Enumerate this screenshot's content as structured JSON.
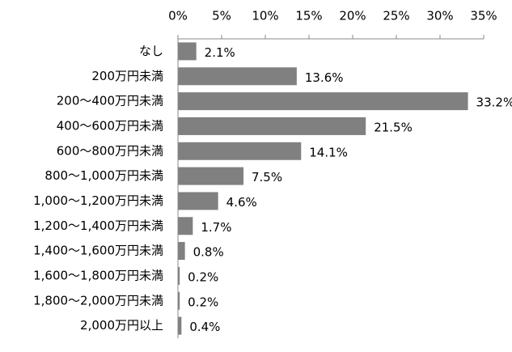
{
  "chart_data": {
    "type": "bar",
    "orientation": "horizontal",
    "categories": [
      "なし",
      "200万円未満",
      "200〜400万円未満",
      "400〜600万円未満",
      "600〜800万円未満",
      "800〜1,000万円未満",
      "1,000〜1,200万円未満",
      "1,200〜1,400万円未満",
      "1,400〜1,600万円未満",
      "1,600〜1,800万円未満",
      "1,800〜2,000万円未満",
      "2,000万円以上"
    ],
    "values": [
      2.1,
      13.6,
      33.2,
      21.5,
      14.1,
      7.5,
      4.6,
      1.7,
      0.8,
      0.2,
      0.2,
      0.4
    ],
    "value_labels": [
      "2.1%",
      "13.6%",
      "33.2%",
      "21.5%",
      "14.1%",
      "7.5%",
      "4.6%",
      "1.7%",
      "0.8%",
      "0.2%",
      "0.2%",
      "0.4%"
    ],
    "color": "#808080",
    "xlim": [
      0,
      35
    ],
    "xticks": [
      {
        "value": 0,
        "label": "0%"
      },
      {
        "value": 5,
        "label": "5%"
      },
      {
        "value": 10,
        "label": "10%"
      },
      {
        "value": 15,
        "label": "15%"
      },
      {
        "value": 20,
        "label": "20%"
      },
      {
        "value": 25,
        "label": "25%"
      },
      {
        "value": 30,
        "label": "30%"
      },
      {
        "value": 35,
        "label": "35%"
      }
    ],
    "grid": false
  }
}
